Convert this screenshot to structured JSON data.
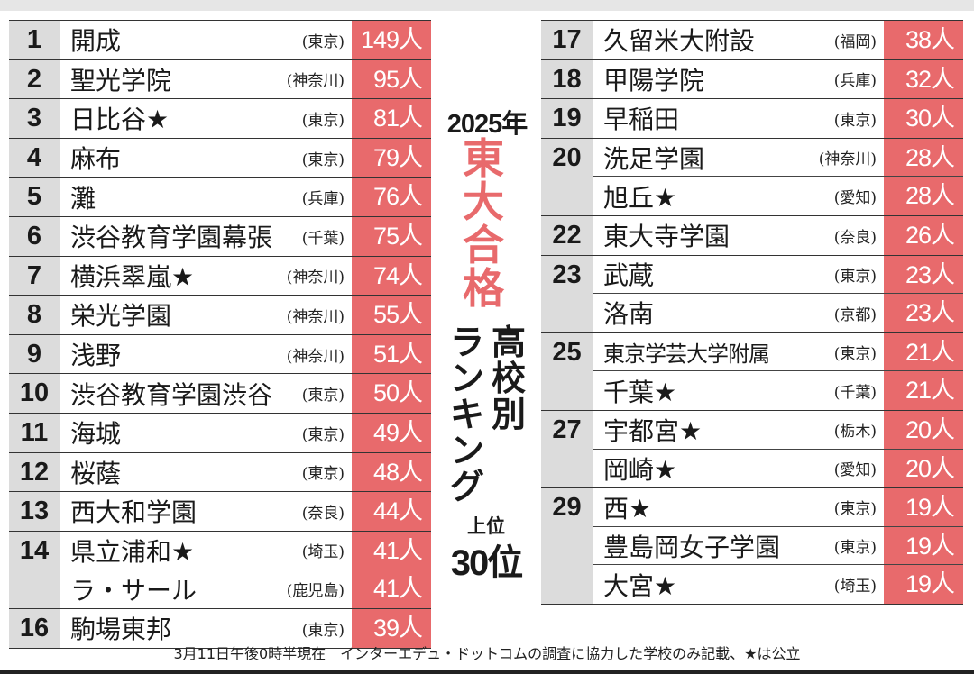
{
  "title": {
    "year": "2025年",
    "main_vertical": [
      "東",
      "大",
      "合",
      "格"
    ],
    "sub_vertical_right": [
      "高",
      "校",
      "別"
    ],
    "sub_vertical_left": [
      "ラ",
      "ン",
      "キ",
      "ン",
      "グ"
    ],
    "top_label": "上位",
    "top_count": "30位"
  },
  "colors": {
    "count_bg": "#e86a6c",
    "rank_bg": "#dcdcdc",
    "title_red": "#e86a6c"
  },
  "left_table": [
    {
      "rank": "1",
      "entries": [
        {
          "name": "開成",
          "pref": "(東京)",
          "count": "149人"
        }
      ]
    },
    {
      "rank": "2",
      "entries": [
        {
          "name": "聖光学院",
          "pref": "(神奈川)",
          "count": "95人"
        }
      ]
    },
    {
      "rank": "3",
      "entries": [
        {
          "name": "日比谷★",
          "pref": "(東京)",
          "count": "81人"
        }
      ]
    },
    {
      "rank": "4",
      "entries": [
        {
          "name": "麻布",
          "pref": "(東京)",
          "count": "79人"
        }
      ]
    },
    {
      "rank": "5",
      "entries": [
        {
          "name": "灘",
          "pref": "(兵庫)",
          "count": "76人"
        }
      ]
    },
    {
      "rank": "6",
      "entries": [
        {
          "name": "渋谷教育学園幕張",
          "pref": "(千葉)",
          "count": "75人"
        }
      ]
    },
    {
      "rank": "7",
      "entries": [
        {
          "name": "横浜翠嵐★",
          "pref": "(神奈川)",
          "count": "74人"
        }
      ]
    },
    {
      "rank": "8",
      "entries": [
        {
          "name": "栄光学園",
          "pref": "(神奈川)",
          "count": "55人"
        }
      ]
    },
    {
      "rank": "9",
      "entries": [
        {
          "name": "浅野",
          "pref": "(神奈川)",
          "count": "51人"
        }
      ]
    },
    {
      "rank": "10",
      "entries": [
        {
          "name": "渋谷教育学園渋谷",
          "pref": "(東京)",
          "count": "50人"
        }
      ]
    },
    {
      "rank": "11",
      "entries": [
        {
          "name": "海城",
          "pref": "(東京)",
          "count": "49人"
        }
      ]
    },
    {
      "rank": "12",
      "entries": [
        {
          "name": "桜蔭",
          "pref": "(東京)",
          "count": "48人"
        }
      ]
    },
    {
      "rank": "13",
      "entries": [
        {
          "name": "西大和学園",
          "pref": "(奈良)",
          "count": "44人"
        }
      ]
    },
    {
      "rank": "14",
      "entries": [
        {
          "name": "県立浦和★",
          "pref": "(埼玉)",
          "count": "41人"
        },
        {
          "name": "ラ・サール",
          "pref": "(鹿児島)",
          "count": "41人"
        }
      ]
    },
    {
      "rank": "16",
      "entries": [
        {
          "name": "駒場東邦",
          "pref": "(東京)",
          "count": "39人"
        }
      ]
    }
  ],
  "right_table": [
    {
      "rank": "17",
      "entries": [
        {
          "name": "久留米大附設",
          "pref": "(福岡)",
          "count": "38人"
        }
      ]
    },
    {
      "rank": "18",
      "entries": [
        {
          "name": "甲陽学院",
          "pref": "(兵庫)",
          "count": "32人"
        }
      ]
    },
    {
      "rank": "19",
      "entries": [
        {
          "name": "早稲田",
          "pref": "(東京)",
          "count": "30人"
        }
      ]
    },
    {
      "rank": "20",
      "entries": [
        {
          "name": "洗足学園",
          "pref": "(神奈川)",
          "count": "28人"
        },
        {
          "name": "旭丘★",
          "pref": "(愛知)",
          "count": "28人"
        }
      ]
    },
    {
      "rank": "22",
      "entries": [
        {
          "name": "東大寺学園",
          "pref": "(奈良)",
          "count": "26人"
        }
      ]
    },
    {
      "rank": "23",
      "entries": [
        {
          "name": "武蔵",
          "pref": "(東京)",
          "count": "23人"
        },
        {
          "name": "洛南",
          "pref": "(京都)",
          "count": "23人"
        }
      ]
    },
    {
      "rank": "25",
      "entries": [
        {
          "name": "東京学芸大学附属",
          "pref": "(東京)",
          "count": "21人",
          "small": true
        },
        {
          "name": "千葉★",
          "pref": "(千葉)",
          "count": "21人"
        }
      ]
    },
    {
      "rank": "27",
      "entries": [
        {
          "name": "宇都宮★",
          "pref": "(栃木)",
          "count": "20人"
        },
        {
          "name": "岡崎★",
          "pref": "(愛知)",
          "count": "20人"
        }
      ]
    },
    {
      "rank": "29",
      "entries": [
        {
          "name": "西★",
          "pref": "(東京)",
          "count": "19人"
        },
        {
          "name": "豊島岡女子学園",
          "pref": "(東京)",
          "count": "19人"
        },
        {
          "name": "大宮★",
          "pref": "(埼玉)",
          "count": "19人"
        }
      ]
    }
  ],
  "footer": "3月11日午後0時半現在　インターエデュ・ドットコムの調査に協力した学校のみ記載、★は公立"
}
